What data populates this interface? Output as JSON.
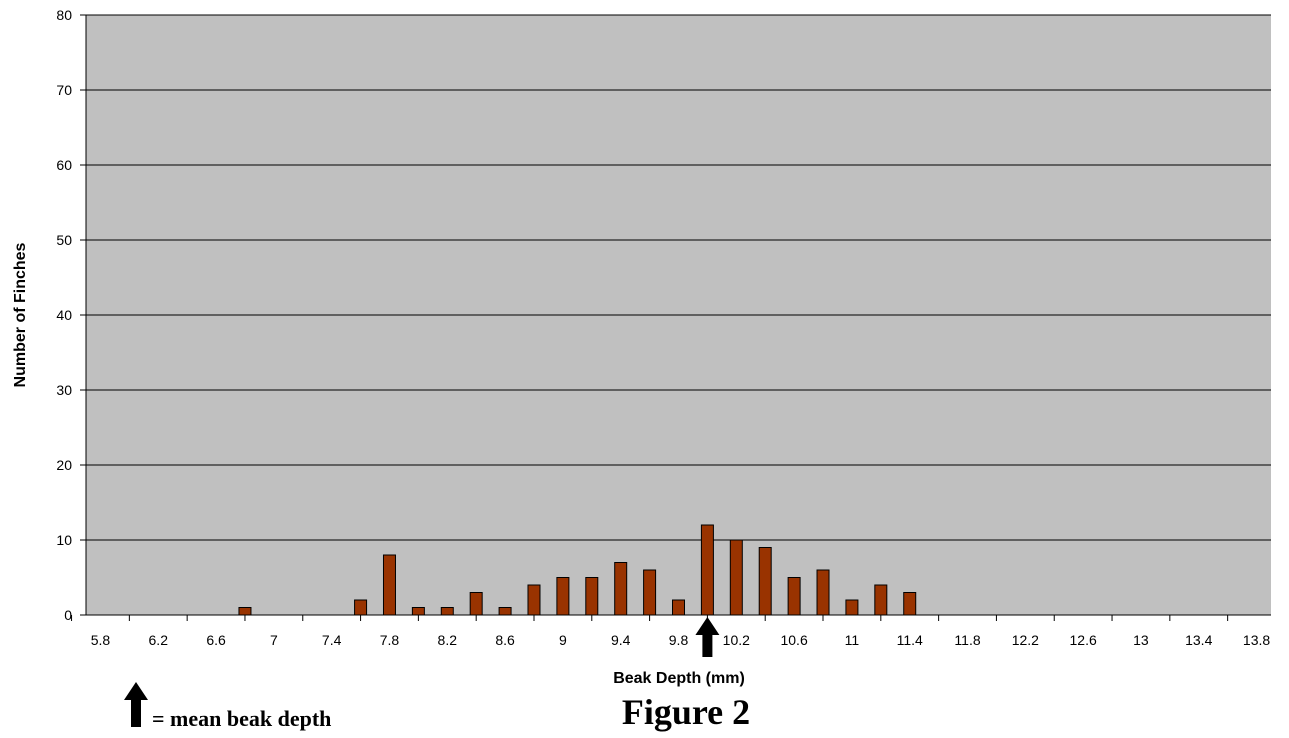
{
  "chart_data": {
    "type": "bar",
    "title": "Figure 2",
    "xlabel": "Beak Depth (mm)",
    "ylabel": "Number of Finches",
    "ylim": [
      0,
      80
    ],
    "yticks": [
      0,
      10,
      20,
      30,
      40,
      50,
      60,
      70,
      80
    ],
    "grid": true,
    "x_tick_labels": [
      "5.8",
      "6.2",
      "6.6",
      "7",
      "7.4",
      "7.8",
      "8.2",
      "8.6",
      "9",
      "9.4",
      "9.8",
      "10.2",
      "10.6",
      "11",
      "11.4",
      "11.8",
      "12.2",
      "12.6",
      "13",
      "13.4",
      "13.8"
    ],
    "categories": [
      5.8,
      6.0,
      6.2,
      6.4,
      6.6,
      6.8,
      7.0,
      7.2,
      7.4,
      7.6,
      7.8,
      8.0,
      8.2,
      8.4,
      8.6,
      8.8,
      9.0,
      9.2,
      9.4,
      9.6,
      9.8,
      10.0,
      10.2,
      10.4,
      10.6,
      10.8,
      11.0,
      11.2,
      11.4,
      11.6,
      11.8,
      12.0,
      12.2,
      12.4,
      12.6,
      12.8,
      13.0,
      13.2,
      13.4,
      13.6,
      13.8
    ],
    "values": [
      0,
      0,
      0,
      0,
      0,
      1,
      0,
      0,
      0,
      2,
      8,
      1,
      1,
      3,
      1,
      4,
      5,
      5,
      7,
      6,
      2,
      12,
      10,
      9,
      5,
      6,
      2,
      4,
      3,
      0,
      0,
      0,
      0,
      0,
      0,
      0,
      0,
      0,
      0,
      0,
      0
    ],
    "mean_marker": 10.0,
    "colors": {
      "bar_fill": "#993300",
      "bar_stroke": "#000000",
      "plot_background": "#c0c0c0",
      "gridline": "#000000"
    }
  },
  "legend": {
    "text": "= mean beak depth",
    "icon": "up-arrow-icon"
  }
}
